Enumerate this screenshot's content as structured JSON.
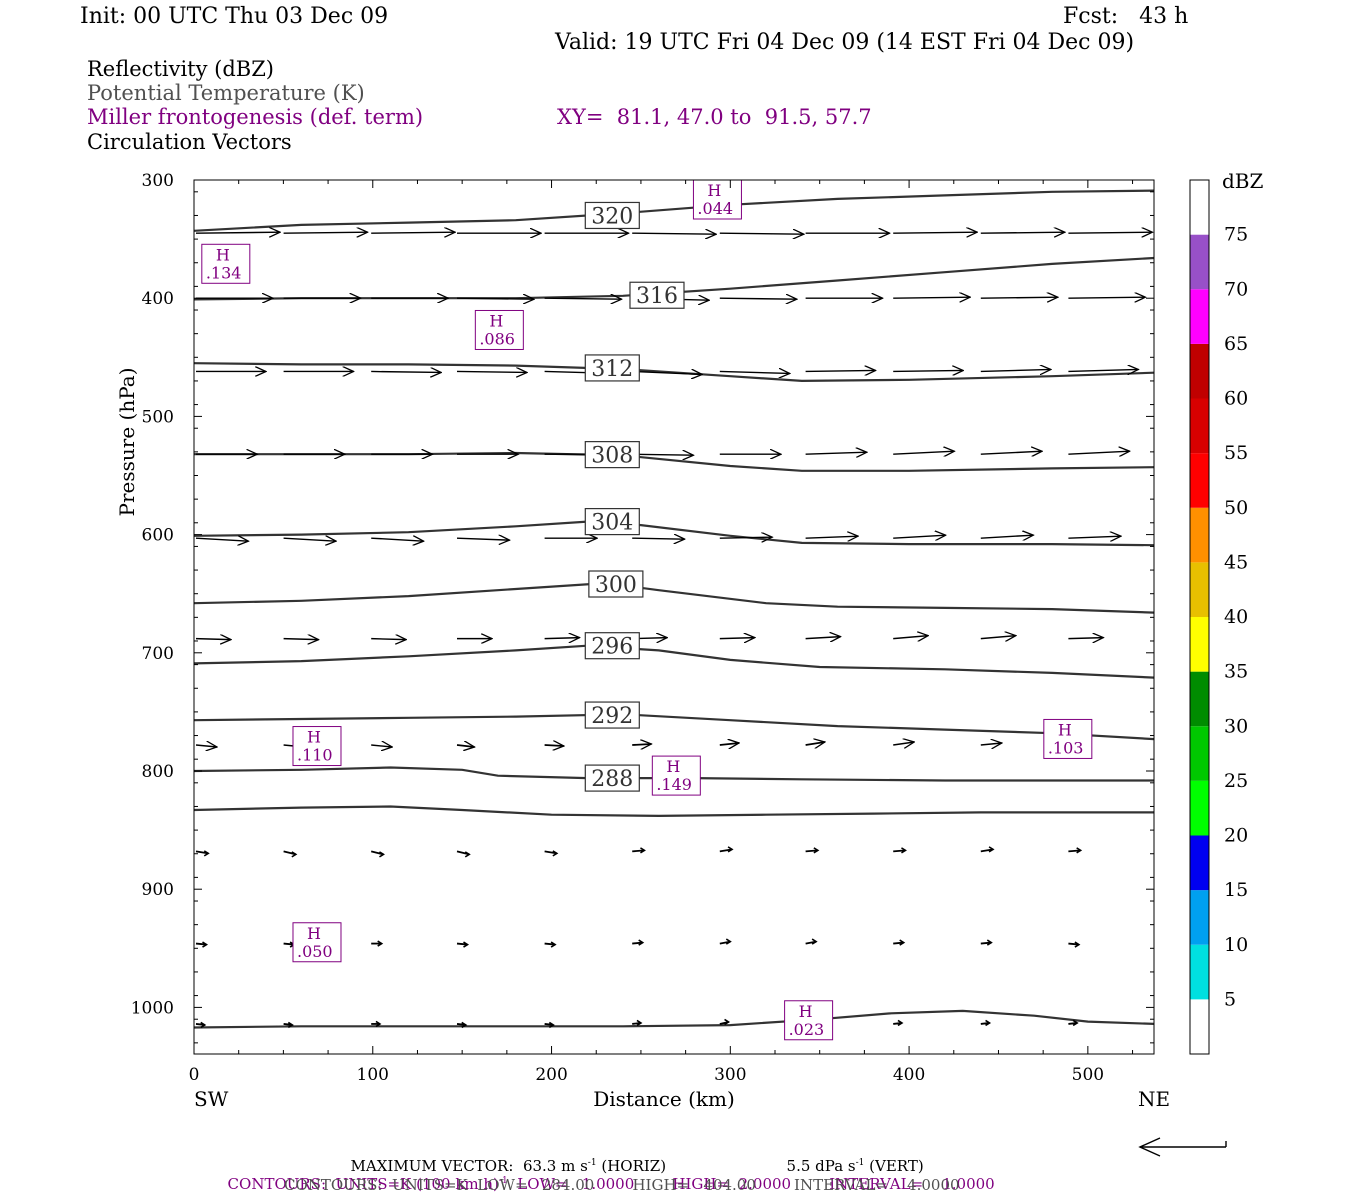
{
  "header": {
    "init": "Init: 00 UTC Thu 03 Dec 09",
    "fcst": "Fcst:   43 h",
    "valid": "Valid: 19 UTC Fri 04 Dec 09 (14 EST Fri 04 Dec 09)"
  },
  "fields": {
    "reflectivity": "Reflectivity (dBZ)",
    "theta": "Potential Temperature (K)",
    "miller": "Miller frontogenesis (def. term)",
    "xy": "XY=  81.1, 47.0 to  91.5, 57.7",
    "vectors": "Circulation Vectors"
  },
  "colors": {
    "purple": "#800080",
    "contour": "#333333",
    "arrow": "#000000"
  },
  "chart_data": {
    "type": "cross-section",
    "xlabel": "Distance (km)",
    "ylabel": "Pressure (hPa)",
    "xlim": [
      0,
      537
    ],
    "ylim": [
      1040,
      300
    ],
    "x_ticks": [
      0,
      100,
      200,
      300,
      400,
      500
    ],
    "y_ticks": [
      300,
      400,
      500,
      600,
      700,
      800,
      900,
      1000
    ],
    "x_end_labels": {
      "left": "SW",
      "right": "NE"
    },
    "theta_contours": [
      {
        "value": "320",
        "label_x": 220,
        "points": [
          [
            0,
            343
          ],
          [
            60,
            338
          ],
          [
            120,
            336
          ],
          [
            180,
            334
          ],
          [
            240,
            328
          ],
          [
            300,
            321
          ],
          [
            360,
            316
          ],
          [
            420,
            313
          ],
          [
            480,
            310
          ],
          [
            537,
            309
          ]
        ]
      },
      {
        "value": "316",
        "label_x": 245,
        "points": [
          [
            0,
            401
          ],
          [
            60,
            400
          ],
          [
            120,
            400
          ],
          [
            180,
            400
          ],
          [
            240,
            398
          ],
          [
            300,
            392
          ],
          [
            360,
            385
          ],
          [
            420,
            378
          ],
          [
            480,
            371
          ],
          [
            537,
            366
          ]
        ]
      },
      {
        "value": "312",
        "label_x": 220,
        "points": [
          [
            0,
            455
          ],
          [
            60,
            456
          ],
          [
            120,
            456
          ],
          [
            180,
            457
          ],
          [
            240,
            460
          ],
          [
            300,
            466
          ],
          [
            340,
            470
          ],
          [
            400,
            469
          ],
          [
            480,
            466
          ],
          [
            537,
            463
          ]
        ]
      },
      {
        "value": "308",
        "label_x": 220,
        "points": [
          [
            0,
            532
          ],
          [
            60,
            532
          ],
          [
            120,
            532
          ],
          [
            180,
            531
          ],
          [
            240,
            533
          ],
          [
            300,
            542
          ],
          [
            340,
            546
          ],
          [
            400,
            546
          ],
          [
            480,
            544
          ],
          [
            537,
            543
          ]
        ]
      },
      {
        "value": "304",
        "label_x": 220,
        "points": [
          [
            0,
            601
          ],
          [
            60,
            600
          ],
          [
            120,
            598
          ],
          [
            180,
            593
          ],
          [
            220,
            589
          ],
          [
            250,
            592
          ],
          [
            300,
            601
          ],
          [
            340,
            607
          ],
          [
            400,
            608
          ],
          [
            480,
            608
          ],
          [
            537,
            609
          ]
        ]
      },
      {
        "value": "300",
        "label_x": 222,
        "points": [
          [
            0,
            658
          ],
          [
            60,
            656
          ],
          [
            120,
            652
          ],
          [
            180,
            646
          ],
          [
            230,
            641
          ],
          [
            260,
            647
          ],
          [
            320,
            658
          ],
          [
            360,
            661
          ],
          [
            420,
            662
          ],
          [
            480,
            663
          ],
          [
            537,
            666
          ]
        ]
      },
      {
        "value": "296",
        "label_x": 220,
        "points": [
          [
            0,
            709
          ],
          [
            60,
            707
          ],
          [
            120,
            703
          ],
          [
            180,
            698
          ],
          [
            220,
            694
          ],
          [
            260,
            698
          ],
          [
            300,
            706
          ],
          [
            350,
            712
          ],
          [
            420,
            714
          ],
          [
            480,
            717
          ],
          [
            537,
            721
          ]
        ]
      },
      {
        "value": "292",
        "label_x": 220,
        "points": [
          [
            0,
            757
          ],
          [
            60,
            756
          ],
          [
            120,
            755
          ],
          [
            180,
            754
          ],
          [
            240,
            752
          ],
          [
            300,
            757
          ],
          [
            360,
            762
          ],
          [
            420,
            765
          ],
          [
            480,
            768
          ],
          [
            537,
            773
          ]
        ]
      },
      {
        "value": "288",
        "label_x": 220,
        "points": [
          [
            0,
            800
          ],
          [
            60,
            799
          ],
          [
            110,
            797
          ],
          [
            150,
            799
          ],
          [
            170,
            804
          ],
          [
            220,
            806
          ],
          [
            280,
            806
          ],
          [
            340,
            807
          ],
          [
            420,
            808
          ],
          [
            537,
            808
          ]
        ]
      },
      {
        "value": "284",
        "label_x": null,
        "points": [
          [
            0,
            833
          ],
          [
            60,
            831
          ],
          [
            110,
            830
          ],
          [
            150,
            833
          ],
          [
            200,
            837
          ],
          [
            260,
            838
          ],
          [
            320,
            837
          ],
          [
            380,
            836
          ],
          [
            440,
            835
          ],
          [
            537,
            835
          ]
        ]
      },
      {
        "value": "",
        "label_x": null,
        "points": [
          [
            0,
            1017
          ],
          [
            60,
            1016
          ],
          [
            120,
            1016
          ],
          [
            180,
            1016
          ],
          [
            240,
            1016
          ],
          [
            300,
            1015
          ],
          [
            350,
            1010
          ],
          [
            390,
            1005
          ],
          [
            430,
            1003
          ],
          [
            470,
            1007
          ],
          [
            500,
            1012
          ],
          [
            537,
            1014
          ]
        ]
      }
    ],
    "frontogenesis_maxima": [
      {
        "label": "H",
        "value": ".044",
        "x": 290,
        "p": 305
      },
      {
        "label": "H",
        "value": ".134",
        "x": 15,
        "p": 373
      },
      {
        "label": "H",
        "value": ".086",
        "x": 168,
        "p": 429
      },
      {
        "label": "H",
        "value": ".110",
        "x": 66,
        "p": 781
      },
      {
        "label": "H",
        "value": ".103",
        "x": 486,
        "p": 775
      },
      {
        "label": "H",
        "value": ".149",
        "x": 267,
        "p": 806
      },
      {
        "label": "H",
        "value": ".050",
        "x": 66,
        "p": 947
      },
      {
        "label": "H",
        "value": ".023",
        "x": 341,
        "p": 1013
      }
    ],
    "vectors": {
      "x_positions": [
        0,
        49,
        98,
        146,
        195,
        244,
        293,
        341,
        390,
        439,
        488
      ],
      "rows": [
        {
          "p": 345,
          "u": [
            48,
            48,
            48,
            48,
            48,
            48,
            48,
            48,
            48,
            48,
            48
          ],
          "dp": [
            -1,
            -1,
            -1,
            0,
            0,
            1,
            1,
            0,
            -1,
            -1,
            -1
          ]
        },
        {
          "p": 400,
          "u": [
            44,
            44,
            44,
            44,
            44,
            44,
            44,
            44,
            44,
            44,
            44
          ],
          "dp": [
            0,
            0,
            0,
            1,
            1,
            2,
            1,
            0,
            -1,
            -1,
            -1
          ]
        },
        {
          "p": 462,
          "u": [
            40,
            40,
            40,
            40,
            40,
            40,
            40,
            40,
            40,
            40,
            40
          ],
          "dp": [
            0,
            0,
            1,
            1,
            2,
            3,
            2,
            -1,
            -1,
            -2,
            -2
          ]
        },
        {
          "p": 532,
          "u": [
            35,
            35,
            35,
            35,
            35,
            35,
            35,
            35,
            35,
            35,
            35
          ],
          "dp": [
            0,
            0,
            0,
            0,
            0,
            1,
            0,
            -2,
            -3,
            -3,
            -3
          ]
        },
        {
          "p": 603,
          "u": [
            30,
            30,
            30,
            30,
            30,
            30,
            30,
            30,
            30,
            30,
            30
          ],
          "dp": [
            3,
            3,
            3,
            2,
            0,
            1,
            -1,
            -2,
            -3,
            -3,
            -2
          ]
        },
        {
          "p": 688,
          "u": [
            20,
            20,
            20,
            20,
            20,
            20,
            20,
            20,
            20,
            20,
            20
          ],
          "dp": [
            1,
            1,
            1,
            0,
            -1,
            -1,
            -1,
            -2,
            -3,
            -3,
            -1
          ]
        },
        {
          "p": 778,
          "u": [
            12,
            12,
            12,
            10,
            11,
            11,
            11,
            11,
            12,
            12,
            12
          ],
          "dp": [
            2,
            2,
            2,
            2,
            1,
            -1,
            -2,
            -3,
            -3,
            -2,
            -1
          ]
        },
        {
          "p": 868,
          "u": [
            7,
            7,
            7,
            7,
            7,
            7,
            7,
            7,
            7,
            7,
            7
          ],
          "dp": [
            2,
            3,
            3,
            3,
            2,
            -1,
            -2,
            -1,
            -1,
            -2,
            -1
          ]
        },
        {
          "p": 946,
          "u": [
            6,
            6,
            6,
            6,
            6,
            6,
            6,
            6,
            6,
            6,
            6
          ],
          "dp": [
            1,
            1,
            0,
            1,
            1,
            -1,
            -2,
            -2,
            -1,
            -1,
            1
          ]
        },
        {
          "p": 1014,
          "u": [
            5,
            5,
            5,
            5,
            5,
            5,
            5,
            5,
            5,
            5,
            5
          ],
          "dp": [
            1,
            1,
            0,
            1,
            1,
            -1,
            -2,
            -2,
            -1,
            -1,
            -1
          ]
        }
      ]
    },
    "colorbar": {
      "title": "dBZ",
      "levels": [
        "5",
        "10",
        "15",
        "20",
        "25",
        "30",
        "35",
        "40",
        "45",
        "50",
        "55",
        "60",
        "65",
        "70",
        "75"
      ],
      "colors": [
        "#ffffff",
        "#00e0e0",
        "#00a0f0",
        "#0000f0",
        "#00ff00",
        "#00c800",
        "#008c00",
        "#ffff00",
        "#e8c000",
        "#ff9000",
        "#ff0000",
        "#d80000",
        "#c00000",
        "#ff00ff",
        "#9850c8",
        "#ffffff"
      ]
    }
  },
  "footer": {
    "max_vector_label": "MAXIMUM VECTOR:",
    "max_horiz": "63.3 m s",
    "horiz_exp": "-1",
    "horiz_unit": "(HORIZ)",
    "max_vert": "5.5 dPa s",
    "vert_exp": "-1",
    "vert_unit": "(VERT)",
    "contours_purple_a": "CONTOURS:  UNITS=K (100 km h)",
    "contours_purple_exp": "-1",
    "contours_purple_b": "  LOW=   1.0000        HIGH=  2.0000        INTERVAL=    1.0000",
    "contours_black": "CONTOURS:  UNITS=K  LOW=   284.00        HIGH=   404.00        INTERVAL=    4.0000"
  }
}
